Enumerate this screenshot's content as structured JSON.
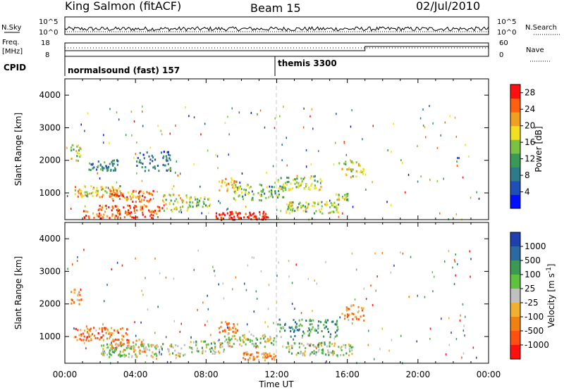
{
  "header": {
    "station": "King Salmon (fitACF)",
    "beam": "Beam 15",
    "date": "02/Jul/2010"
  },
  "top_panel": {
    "nsky_label": "N.Sky",
    "nsearch_label": "N.Search",
    "freq_label": "Freq.",
    "freq_unit": "[MHz]",
    "nave_label": "Nave",
    "cpid_label": "CPID",
    "noise_ticks": [
      "10^5",
      "10^0"
    ],
    "noise_ticks_right": [
      "10^5",
      "10^0"
    ],
    "freq_ticks": [
      "18",
      "8"
    ],
    "nave_ticks": [
      "60",
      "0"
    ],
    "programs": [
      {
        "name": "normalsound (fast) 157",
        "start_hour": 0
      },
      {
        "name": "themis 3300",
        "start_hour": 12
      }
    ]
  },
  "x_axis": {
    "label": "Time UT",
    "ticks": [
      "00:00",
      "04:00",
      "08:00",
      "12:00",
      "16:00",
      "20:00",
      "00:00"
    ]
  },
  "chart_data": [
    {
      "type": "heatmap",
      "quantity": "Power",
      "ylabel": "Slant Range [km]",
      "xlabel": "",
      "xlim": [
        0,
        24
      ],
      "ylim": [
        180,
        4500
      ],
      "yticks": [
        1000,
        2000,
        3000,
        4000
      ],
      "colorbar": {
        "label": "Power [dB]",
        "ticks": [
          "4",
          "8",
          "12",
          "16",
          "20",
          "24",
          "28"
        ],
        "range": [
          0,
          30
        ],
        "colors": [
          "#0010ff",
          "#1f4fb8",
          "#2c7a8a",
          "#3a9a55",
          "#7ac240",
          "#f0e020",
          "#f0a020",
          "#ff6010",
          "#ff1010"
        ]
      },
      "regions": [
        {
          "t0": 0.3,
          "t1": 1.0,
          "r0": 2000,
          "r1": 2500,
          "level": 0.55
        },
        {
          "t0": 0.5,
          "t1": 3.2,
          "r0": 900,
          "r1": 1250,
          "level": 0.65
        },
        {
          "t0": 2.5,
          "t1": 5.0,
          "r0": 750,
          "r1": 1100,
          "level": 0.8
        },
        {
          "t0": 1.0,
          "t1": 5.5,
          "r0": 250,
          "r1": 650,
          "level": 0.85
        },
        {
          "t0": 5.5,
          "t1": 7.0,
          "r0": 450,
          "r1": 1000,
          "level": 0.6
        },
        {
          "t0": 7.0,
          "t1": 8.2,
          "r0": 600,
          "r1": 900,
          "level": 0.5
        },
        {
          "t0": 8.7,
          "t1": 9.8,
          "r0": 1050,
          "r1": 1500,
          "level": 0.7
        },
        {
          "t0": 8.5,
          "t1": 11.5,
          "r0": 200,
          "r1": 450,
          "level": 0.95
        },
        {
          "t0": 9.5,
          "t1": 12.5,
          "r0": 800,
          "r1": 1300,
          "level": 0.45
        },
        {
          "t0": 12.0,
          "t1": 14.5,
          "r0": 1100,
          "r1": 1550,
          "level": 0.55
        },
        {
          "t0": 12.5,
          "t1": 15.5,
          "r0": 400,
          "r1": 750,
          "level": 0.55
        },
        {
          "t0": 15.3,
          "t1": 16.0,
          "r0": 800,
          "r1": 1000,
          "level": 0.55
        },
        {
          "t0": 15.5,
          "t1": 16.9,
          "r0": 1500,
          "r1": 2000,
          "level": 0.55
        },
        {
          "t0": 1.2,
          "t1": 3.0,
          "r0": 1700,
          "r1": 2050,
          "level": 0.3
        },
        {
          "t0": 4.0,
          "t1": 6.0,
          "r0": 1700,
          "r1": 2300,
          "level": 0.25
        }
      ]
    },
    {
      "type": "heatmap",
      "quantity": "Velocity",
      "ylabel": "Slant Range [km]",
      "xlabel": "Time UT",
      "xlim": [
        0,
        24
      ],
      "ylim": [
        180,
        4500
      ],
      "yticks": [
        1000,
        2000,
        3000,
        4000
      ],
      "colorbar": {
        "label": "Velocity [m s^-1]",
        "ticks": [
          "1000",
          "500",
          "100",
          "25",
          "-25",
          "-100",
          "-500",
          "-1000"
        ],
        "colors": [
          "#1f3fb0",
          "#2a6aa0",
          "#3a9a55",
          "#60c040",
          "#c0c0c0",
          "#f0b030",
          "#f08010",
          "#ff5010",
          "#ff1010"
        ]
      },
      "regions": [
        {
          "t0": 0.3,
          "t1": 1.0,
          "r0": 2000,
          "r1": 2500,
          "level": 0.7
        },
        {
          "t0": 0.5,
          "t1": 3.5,
          "r0": 900,
          "r1": 1300,
          "level": 0.75
        },
        {
          "t0": 2.5,
          "t1": 4.5,
          "r0": 550,
          "r1": 950,
          "level": 0.7
        },
        {
          "t0": 2.0,
          "t1": 6.8,
          "r0": 400,
          "r1": 800,
          "level": 0.45
        },
        {
          "t0": 7.0,
          "t1": 9.0,
          "r0": 500,
          "r1": 900,
          "level": 0.45
        },
        {
          "t0": 8.7,
          "t1": 9.8,
          "r0": 1100,
          "r1": 1500,
          "level": 0.75
        },
        {
          "t0": 9.0,
          "t1": 12.0,
          "r0": 700,
          "r1": 1100,
          "level": 0.45
        },
        {
          "t0": 10.0,
          "t1": 12.0,
          "r0": 300,
          "r1": 550,
          "level": 0.7
        },
        {
          "t0": 12.0,
          "t1": 15.5,
          "r0": 1000,
          "r1": 1550,
          "level": 0.3
        },
        {
          "t0": 12.5,
          "t1": 16.5,
          "r0": 450,
          "r1": 850,
          "level": 0.45
        },
        {
          "t0": 15.6,
          "t1": 16.9,
          "r0": 1500,
          "r1": 2000,
          "level": 0.7
        }
      ]
    }
  ]
}
